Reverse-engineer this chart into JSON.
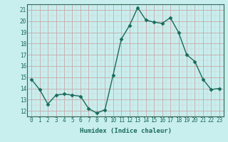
{
  "x": [
    0,
    1,
    2,
    3,
    4,
    5,
    6,
    7,
    8,
    9,
    10,
    11,
    12,
    13,
    14,
    15,
    16,
    17,
    18,
    19,
    20,
    21,
    22,
    23
  ],
  "y": [
    14.8,
    13.9,
    12.6,
    13.4,
    13.5,
    13.4,
    13.3,
    12.2,
    11.8,
    12.1,
    15.2,
    18.4,
    19.6,
    21.2,
    20.1,
    19.9,
    19.8,
    20.3,
    19.0,
    17.0,
    16.4,
    14.8,
    13.9,
    14.0
  ],
  "xlabel": "Humidex (Indice chaleur)",
  "ylim": [
    11.5,
    21.5
  ],
  "xlim": [
    -0.5,
    23.5
  ],
  "yticks": [
    12,
    13,
    14,
    15,
    16,
    17,
    18,
    19,
    20,
    21
  ],
  "xticks": [
    0,
    1,
    2,
    3,
    4,
    5,
    6,
    7,
    8,
    9,
    10,
    11,
    12,
    13,
    14,
    15,
    16,
    17,
    18,
    19,
    20,
    21,
    22,
    23
  ],
  "line_color": "#1a6b5a",
  "bg_color": "#c8eeee",
  "grid_major_color": "#c8a8a8",
  "grid_minor_color": "#ddc8c8",
  "marker_size": 2.5,
  "line_width": 1.0,
  "tick_fontsize": 5.5,
  "xlabel_fontsize": 6.5
}
